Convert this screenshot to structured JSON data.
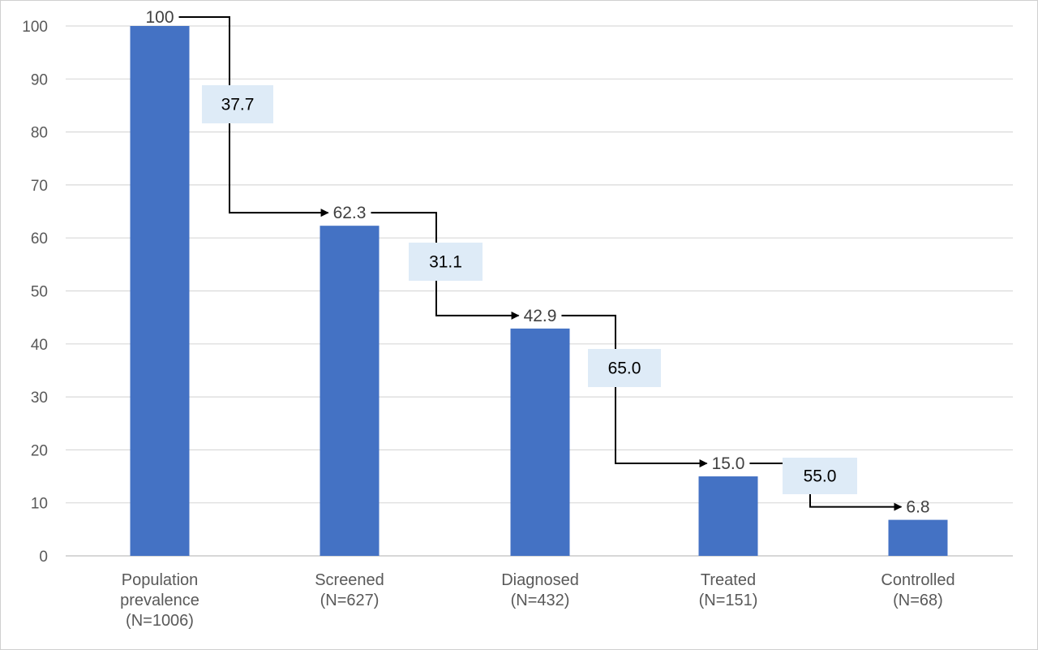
{
  "chart_data": {
    "type": "bar",
    "categories": [
      [
        "Population",
        "prevalence",
        "(N=1006)"
      ],
      [
        "Screened",
        "(N=627)"
      ],
      [
        "Diagnosed",
        "(N=432)"
      ],
      [
        "Treated",
        "(N=151)"
      ],
      [
        "Controlled",
        "(N=68)"
      ]
    ],
    "values": [
      100,
      62.3,
      42.9,
      15.0,
      6.8
    ],
    "value_labels": [
      "100",
      "62.3",
      "42.9",
      "15.0",
      "6.8"
    ],
    "drop_labels": [
      "37.7",
      "31.1",
      "65.0",
      "55.0"
    ],
    "ylim": [
      0,
      100
    ],
    "yticks": [
      0,
      10,
      20,
      30,
      40,
      50,
      60,
      70,
      80,
      90,
      100
    ],
    "grid": true,
    "colors": {
      "bar": "#4472C4",
      "grid": "#D9D9D9",
      "drop_box": "#DEEBF7",
      "arrow": "#000000"
    }
  }
}
